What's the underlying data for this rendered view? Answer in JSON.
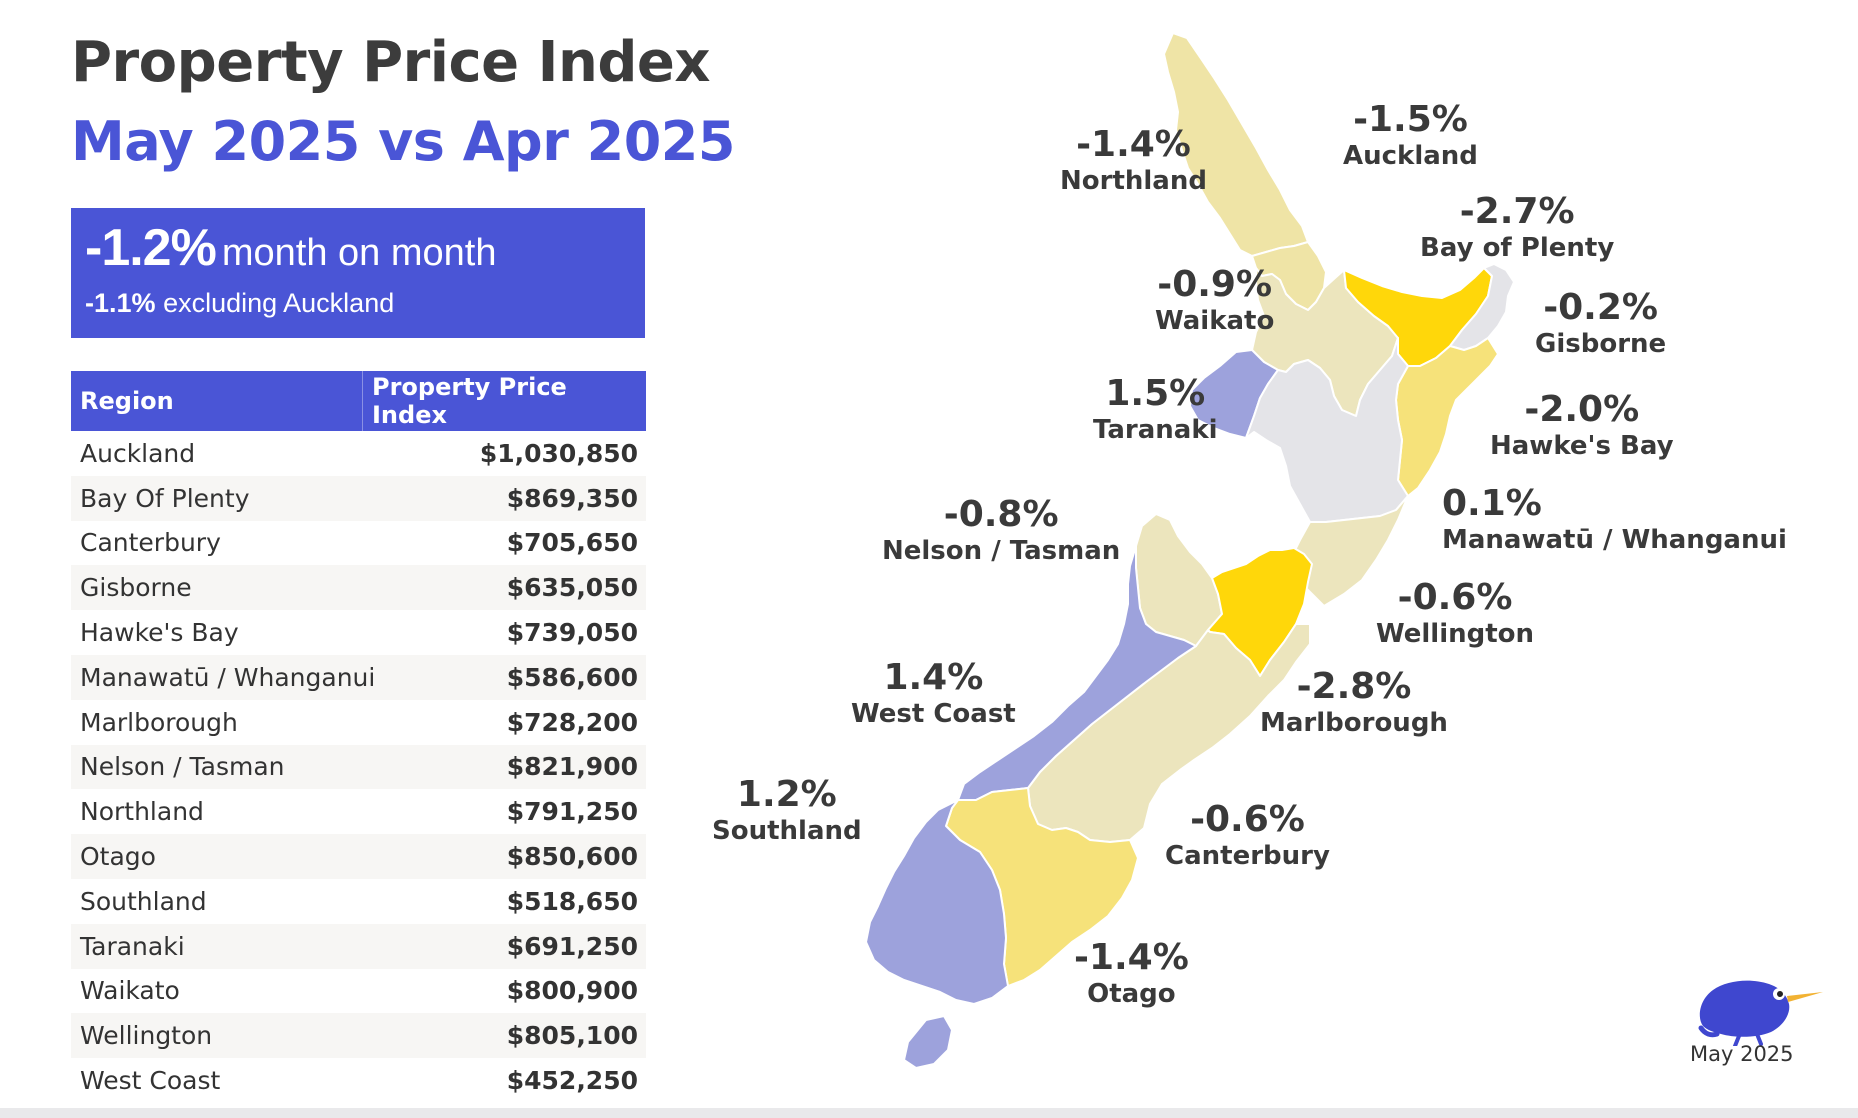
{
  "header": {
    "title": "Property Price Index",
    "subtitle": "May 2025 vs Apr 2025"
  },
  "summary": {
    "headline_pct": "-1.2%",
    "headline_text": "month on month",
    "secondary_pct": "-1.1%",
    "secondary_text": "excluding Auckland"
  },
  "table": {
    "columns": [
      "Region",
      "Property Price Index"
    ],
    "rows": [
      {
        "region": "Auckland",
        "index": "$1,030,850"
      },
      {
        "region": "Bay Of Plenty",
        "index": "$869,350"
      },
      {
        "region": "Canterbury",
        "index": "$705,650"
      },
      {
        "region": "Gisborne",
        "index": "$635,050"
      },
      {
        "region": "Hawke's Bay",
        "index": "$739,050"
      },
      {
        "region": "Manawatū / Whanganui",
        "index": "$586,600"
      },
      {
        "region": "Marlborough",
        "index": "$728,200"
      },
      {
        "region": "Nelson / Tasman",
        "index": "$821,900"
      },
      {
        "region": "Northland",
        "index": "$791,250"
      },
      {
        "region": "Otago",
        "index": "$850,600"
      },
      {
        "region": "Southland",
        "index": "$518,650"
      },
      {
        "region": "Taranaki",
        "index": "$691,250"
      },
      {
        "region": "Waikato",
        "index": "$800,900"
      },
      {
        "region": "Wellington",
        "index": "$805,100"
      },
      {
        "region": "West Coast",
        "index": "$452,250"
      }
    ]
  },
  "map": {
    "colors": {
      "strong_decline": "#ffd70a",
      "decline": "#f6e27a",
      "mild_decline": "#efe4a6",
      "slight_decline": "#ece5bd",
      "flat": "#e4e4e8",
      "rise": "#9da2dc",
      "border": "#ffffff"
    },
    "regions": [
      {
        "name": "Northland",
        "change": "-1.4%"
      },
      {
        "name": "Auckland",
        "change": "-1.5%"
      },
      {
        "name": "Bay of Plenty",
        "change": "-2.7%"
      },
      {
        "name": "Waikato",
        "change": "-0.9%"
      },
      {
        "name": "Gisborne",
        "change": "-0.2%"
      },
      {
        "name": "Taranaki",
        "change": "1.5%"
      },
      {
        "name": "Hawke's Bay",
        "change": "-2.0%"
      },
      {
        "name": "Manawatū / Whanganui",
        "change": "0.1%"
      },
      {
        "name": "Nelson / Tasman",
        "change": "-0.8%"
      },
      {
        "name": "Wellington",
        "change": "-0.6%"
      },
      {
        "name": "West Coast",
        "change": "1.4%"
      },
      {
        "name": "Marlborough",
        "change": "-2.8%"
      },
      {
        "name": "Southland",
        "change": "1.2%"
      },
      {
        "name": "Canterbury",
        "change": "-0.6%"
      },
      {
        "name": "Otago",
        "change": "-1.4%"
      }
    ]
  },
  "footer": {
    "logo_icon": "kiwi-bird-icon",
    "date": "May 2025"
  }
}
